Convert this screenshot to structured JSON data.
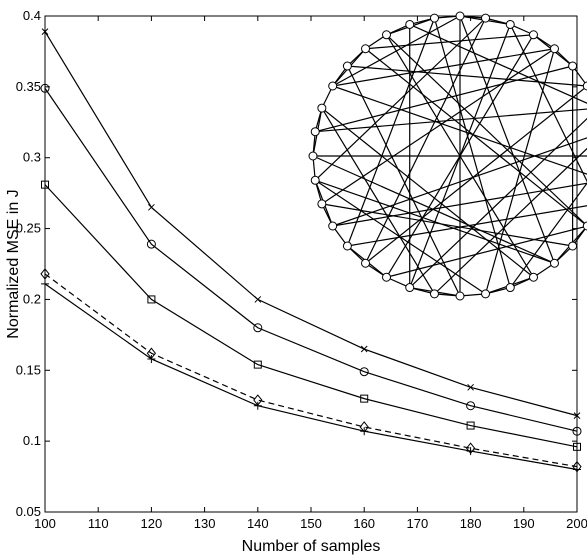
{
  "chart_data": {
    "type": "line",
    "xlabel": "Number of samples",
    "ylabel": "Normalized MSE in J",
    "xlim": [
      100,
      200
    ],
    "ylim": [
      0.05,
      0.4
    ],
    "xticks": [
      100,
      110,
      120,
      130,
      140,
      150,
      160,
      170,
      180,
      190,
      200
    ],
    "yticks": [
      0.05,
      0.1,
      0.15,
      0.2,
      0.25,
      0.3,
      0.35,
      0.4
    ],
    "ytick_labels": [
      "0.05",
      "0.1",
      "0.15",
      "0.2",
      "0.25",
      "0.3",
      "0.35",
      "0.4"
    ],
    "grid": false,
    "x": [
      100,
      120,
      140,
      160,
      180,
      200
    ],
    "series": [
      {
        "marker": "x",
        "line": "solid",
        "values": [
          0.389,
          0.265,
          0.2,
          0.165,
          0.138,
          0.118
        ]
      },
      {
        "marker": "o",
        "line": "solid",
        "values": [
          0.349,
          0.239,
          0.18,
          0.149,
          0.125,
          0.107
        ]
      },
      {
        "marker": "square",
        "line": "solid",
        "values": [
          0.281,
          0.2,
          0.154,
          0.13,
          0.111,
          0.096
        ]
      },
      {
        "marker": "diamond",
        "line": "dashed",
        "values": [
          0.218,
          0.162,
          0.129,
          0.11,
          0.095,
          0.082
        ]
      },
      {
        "marker": "plus",
        "line": "solid",
        "values": [
          0.211,
          0.158,
          0.125,
          0.107,
          0.093,
          0.08
        ]
      }
    ],
    "inset": {
      "type": "graph",
      "node_count": 36,
      "node_marker": "o",
      "edges": [
        [
          0,
          14
        ],
        [
          1,
          26
        ],
        [
          2,
          20
        ],
        [
          3,
          32
        ],
        [
          4,
          17
        ],
        [
          5,
          28
        ],
        [
          6,
          22
        ],
        [
          7,
          34
        ],
        [
          8,
          19
        ],
        [
          9,
          27
        ],
        [
          10,
          30
        ],
        [
          11,
          23
        ],
        [
          12,
          33
        ],
        [
          13,
          25
        ],
        [
          15,
          29
        ],
        [
          16,
          35
        ],
        [
          18,
          31
        ],
        [
          21,
          3
        ],
        [
          24,
          8
        ],
        [
          0,
          18
        ],
        [
          2,
          11
        ],
        [
          5,
          13
        ],
        [
          6,
          31
        ],
        [
          9,
          16
        ],
        [
          10,
          24
        ],
        [
          12,
          21
        ],
        [
          14,
          27
        ],
        [
          15,
          33
        ],
        [
          17,
          26
        ],
        [
          19,
          29
        ],
        [
          20,
          34
        ],
        [
          22,
          1
        ],
        [
          23,
          35
        ],
        [
          25,
          4
        ],
        [
          28,
          7
        ],
        [
          30,
          0
        ],
        [
          32,
          12
        ],
        [
          4,
          30
        ],
        [
          7,
          20
        ],
        [
          26,
          14
        ],
        [
          0,
          1
        ],
        [
          1,
          2
        ],
        [
          2,
          3
        ],
        [
          3,
          4
        ],
        [
          4,
          5
        ],
        [
          5,
          6
        ],
        [
          6,
          7
        ],
        [
          7,
          8
        ],
        [
          8,
          9
        ],
        [
          9,
          10
        ],
        [
          10,
          11
        ],
        [
          11,
          12
        ],
        [
          12,
          13
        ],
        [
          13,
          14
        ],
        [
          14,
          15
        ],
        [
          15,
          16
        ],
        [
          16,
          17
        ],
        [
          17,
          18
        ],
        [
          18,
          19
        ],
        [
          19,
          20
        ],
        [
          20,
          21
        ],
        [
          21,
          22
        ],
        [
          22,
          23
        ],
        [
          23,
          24
        ],
        [
          24,
          25
        ],
        [
          25,
          26
        ],
        [
          26,
          27
        ],
        [
          27,
          28
        ],
        [
          28,
          29
        ],
        [
          29,
          30
        ],
        [
          30,
          31
        ],
        [
          31,
          32
        ],
        [
          32,
          33
        ],
        [
          33,
          34
        ],
        [
          34,
          35
        ],
        [
          35,
          0
        ],
        [
          0,
          2
        ],
        [
          3,
          5
        ],
        [
          6,
          8
        ],
        [
          9,
          11
        ],
        [
          12,
          14
        ],
        [
          15,
          17
        ],
        [
          18,
          20
        ],
        [
          21,
          23
        ],
        [
          24,
          26
        ],
        [
          27,
          29
        ],
        [
          30,
          32
        ],
        [
          33,
          35
        ]
      ]
    }
  }
}
